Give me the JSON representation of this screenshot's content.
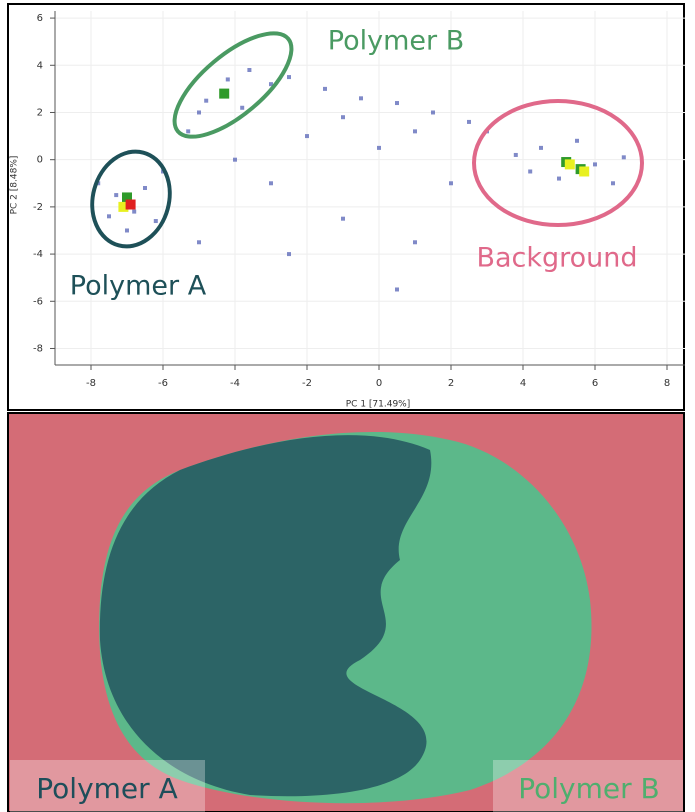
{
  "chart_data": {
    "type": "scatter",
    "x_label": "PC 1 [71.49%]",
    "y_label": "PC 2 [8.48%]",
    "xlim": [
      -9,
      8.5
    ],
    "ylim": [
      -8.7,
      6.3
    ],
    "xticks": [
      -8,
      -6,
      -4,
      -2,
      0,
      2,
      4,
      6,
      8
    ],
    "yticks": [
      -8,
      -6,
      -4,
      -2,
      0,
      2,
      4,
      6
    ],
    "annotations": [
      "Polymer B",
      "Polymer A",
      "Background"
    ],
    "series": [
      {
        "color": "#4a58b0",
        "x": [
          -7.3,
          -6.8,
          -7.5,
          -6.5,
          -7.0,
          -6.2,
          -7.8,
          -6.0,
          -5.0,
          -4.2,
          -3.6,
          -4.8,
          -3.0,
          -5.3,
          -3.8,
          -2.5,
          -1.5,
          -0.5,
          0.5,
          1.5,
          2.5,
          3.0,
          -1.0,
          1.0,
          -2.0,
          0.0,
          4.5,
          5.0,
          6.0,
          6.5,
          4.2,
          5.5,
          3.8,
          6.8,
          -3.0,
          -1.0,
          1.0,
          0.5,
          -2.5,
          2.0,
          -5.0,
          -4.0
        ],
        "y": [
          -1.5,
          -2.2,
          -2.4,
          -1.2,
          -3.0,
          -2.6,
          -1.0,
          -0.5,
          2.0,
          3.4,
          3.8,
          2.5,
          3.2,
          1.2,
          2.2,
          3.5,
          3.0,
          2.6,
          2.4,
          2.0,
          1.6,
          1.2,
          1.8,
          1.2,
          1.0,
          0.5,
          0.5,
          -0.8,
          -0.2,
          -1.0,
          -0.5,
          0.8,
          0.2,
          0.1,
          -1.0,
          -2.5,
          -3.5,
          -5.5,
          -4.0,
          -1.0,
          -3.5,
          0.0
        ]
      },
      {
        "color": "#2f9a2a",
        "x": [
          -4.3,
          5.2,
          5.6,
          -7.0
        ],
        "y": [
          2.8,
          -0.1,
          -0.4,
          -1.6
        ]
      },
      {
        "color": "#e8f020",
        "x": [
          5.3,
          -7.1,
          5.7
        ],
        "y": [
          -0.2,
          -2.0,
          -0.5
        ]
      },
      {
        "color": "#e02020",
        "x": [
          -6.9
        ],
        "y": [
          -1.9
        ]
      }
    ]
  },
  "image": {
    "labels": [
      "Polymer A",
      "Polymer B"
    ]
  }
}
